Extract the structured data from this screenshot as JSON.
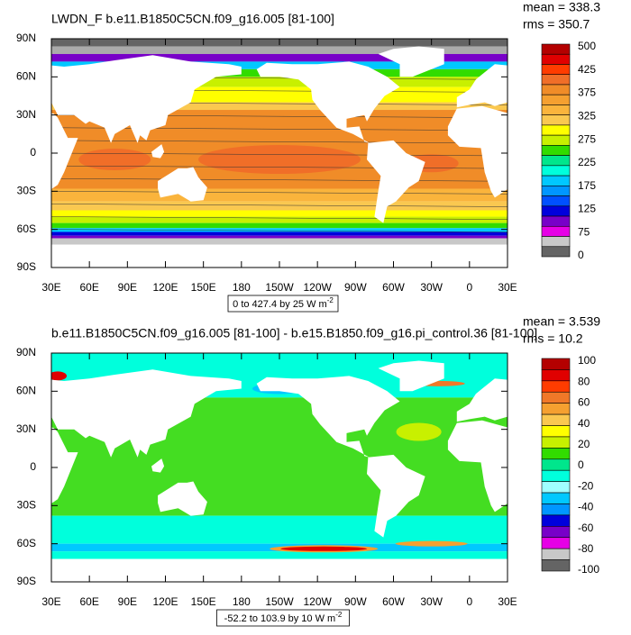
{
  "panels": [
    {
      "title": "LWDN_F b.e11.B1850C5CN.f09_g16.005 [81-100]",
      "mean": "mean = 338.3",
      "rms": "rms = 350.7",
      "lat_labels": [
        "90N",
        "60N",
        "30N",
        "0",
        "30S",
        "60S",
        "90S"
      ],
      "lon_labels": [
        "30E",
        "60E",
        "90E",
        "120E",
        "150E",
        "180",
        "150W",
        "120W",
        "90W",
        "60W",
        "30W",
        "0",
        "30E"
      ],
      "colorbar": {
        "labels": [
          "500",
          "425",
          "375",
          "325",
          "275",
          "225",
          "175",
          "125",
          "75",
          "0"
        ],
        "colors": [
          "#b40000",
          "#e00000",
          "#ff3c00",
          "#f06e28",
          "#f08c28",
          "#f5a030",
          "#fab43c",
          "#fac850",
          "#ffff00",
          "#c8f000",
          "#32dc00",
          "#00e68c",
          "#00ffdc",
          "#00c8ff",
          "#0096ff",
          "#0050ff",
          "#0000dc",
          "#7800c8",
          "#e600e6",
          "#c8c8c8",
          "#646464"
        ]
      },
      "info": "0 to 427.4 by 25  W m",
      "info_exponent": "-2"
    },
    {
      "title": "b.e11.B1850C5CN.f09_g16.005 [81-100] - b.e15.B1850.f09_g16.pi_control.36 [81-100]",
      "mean": "mean = 3.539",
      "rms": "rms = 10.2",
      "lat_labels": [
        "90N",
        "60N",
        "30N",
        "0",
        "30S",
        "60S",
        "90S"
      ],
      "lon_labels": [
        "30E",
        "60E",
        "90E",
        "120E",
        "150E",
        "180",
        "150W",
        "120W",
        "90W",
        "60W",
        "30W",
        "0",
        "30E"
      ],
      "colorbar": {
        "labels": [
          "100",
          "80",
          "60",
          "40",
          "20",
          "0",
          "-20",
          "-40",
          "-60",
          "-80",
          "-100"
        ],
        "colors": [
          "#b40000",
          "#e00000",
          "#ff3c00",
          "#f07828",
          "#f5a030",
          "#fac850",
          "#ffff00",
          "#c8f000",
          "#32dc00",
          "#00e68c",
          "#00ffdc",
          "#a0ffff",
          "#00c8ff",
          "#0096ff",
          "#0000dc",
          "#7800c8",
          "#e600e6",
          "#c8c8c8",
          "#646464"
        ]
      },
      "info": "-52.2 to 103.9 by 10  W m",
      "info_exponent": "-2"
    }
  ]
}
